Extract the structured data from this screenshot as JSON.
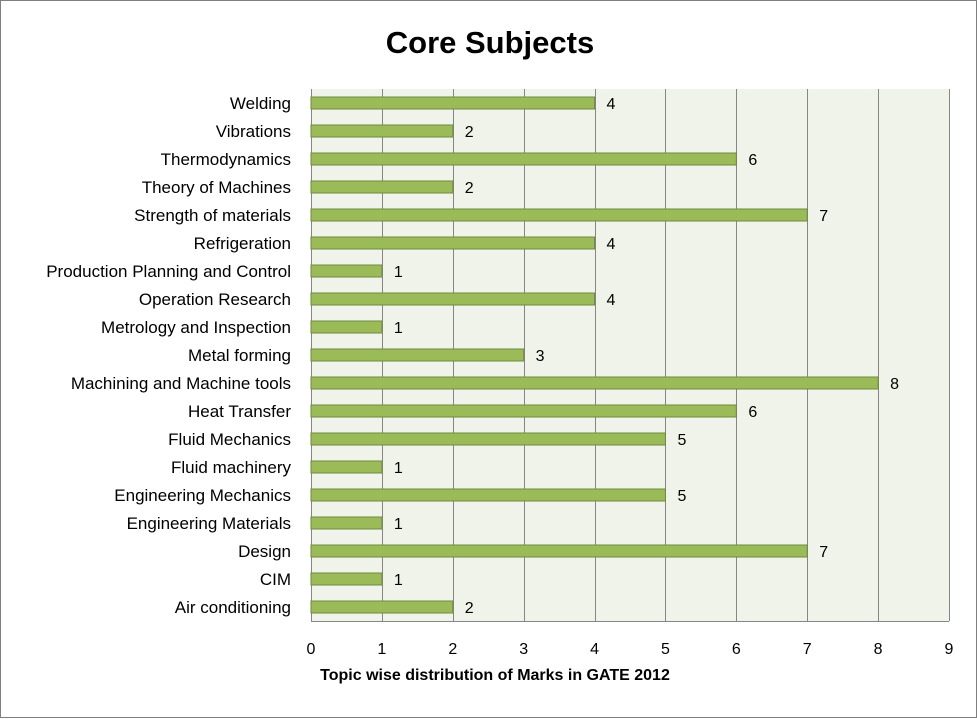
{
  "chart_data": {
    "type": "bar",
    "orientation": "horizontal",
    "title": "Core Subjects",
    "xlabel": "Topic wise distribution of Marks in GATE 2012",
    "ylabel": "",
    "categories": [
      "Air conditioning",
      "CIM",
      "Design",
      "Engineering Materials",
      "Engineering Mechanics",
      "Fluid machinery",
      "Fluid Mechanics",
      "Heat Transfer",
      "Machining and Machine tools",
      "Metal forming",
      "Metrology and Inspection",
      "Operation Research",
      "Production Planning and Control",
      "Refrigeration",
      "Strength of materials",
      "Theory of Machines",
      "Thermodynamics",
      "Vibrations",
      "Welding"
    ],
    "values": [
      2,
      1,
      7,
      1,
      5,
      1,
      5,
      6,
      8,
      3,
      1,
      4,
      1,
      4,
      7,
      2,
      6,
      2,
      4
    ],
    "xlim": [
      0,
      9
    ],
    "xticks": [
      0,
      1,
      2,
      3,
      4,
      5,
      6,
      7,
      8,
      9
    ],
    "grid": "vertical",
    "legend": "none",
    "data_labels": true,
    "colors": {
      "bar_fill": "#9bbb59",
      "bar_stroke": "#71893f",
      "plot_bg": "#eff3ea",
      "grid": "#868686"
    }
  }
}
